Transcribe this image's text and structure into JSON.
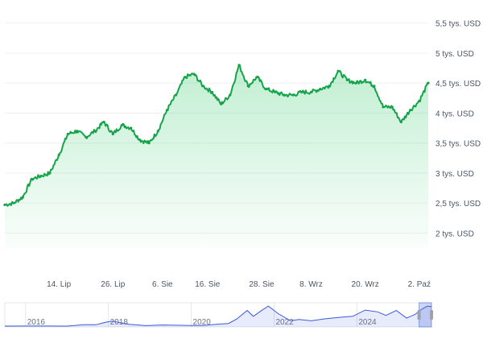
{
  "chart_data": [
    {
      "type": "area",
      "title": "",
      "xlabel": "",
      "ylabel": "",
      "ylim": [
        1750,
        5750
      ],
      "y_ticks": [
        {
          "value": 2000,
          "label": "2 tys. USD"
        },
        {
          "value": 2500,
          "label": "2,5 tys. USD"
        },
        {
          "value": 3000,
          "label": "3 tys. USD"
        },
        {
          "value": 3500,
          "label": "3,5 tys. USD"
        },
        {
          "value": 4000,
          "label": "4 tys. USD"
        },
        {
          "value": 4500,
          "label": "4,5 tys. USD"
        },
        {
          "value": 5000,
          "label": "5 tys. USD"
        },
        {
          "value": 5500,
          "label": "5,5 tys. USD"
        }
      ],
      "x_range": [
        "2025-07-02",
        "2025-10-04"
      ],
      "x_ticks": [
        {
          "date": "2025-07-14",
          "label": "14. Lip"
        },
        {
          "date": "2025-07-26",
          "label": "26. Lip"
        },
        {
          "date": "2025-08-06",
          "label": "6. Sie"
        },
        {
          "date": "2025-08-16",
          "label": "16. Sie"
        },
        {
          "date": "2025-08-28",
          "label": "28. Sie"
        },
        {
          "date": "2025-09-08",
          "label": "8. Wrz"
        },
        {
          "date": "2025-09-20",
          "label": "20. Wrz"
        },
        {
          "date": "2025-10-02",
          "label": "2. Paź"
        }
      ],
      "grid": true,
      "colors": {
        "line": "#16a34a",
        "fill": "#22c55e"
      },
      "series": [
        {
          "x": [
            "2025-07-02",
            "2025-07-04",
            "2025-07-06",
            "2025-07-08",
            "2025-07-10",
            "2025-07-12",
            "2025-07-14",
            "2025-07-16",
            "2025-07-18",
            "2025-07-20",
            "2025-07-22",
            "2025-07-24",
            "2025-07-26",
            "2025-07-28",
            "2025-07-30",
            "2025-08-01",
            "2025-08-03",
            "2025-08-05",
            "2025-08-07",
            "2025-08-09",
            "2025-08-11",
            "2025-08-13",
            "2025-08-15",
            "2025-08-17",
            "2025-08-19",
            "2025-08-21",
            "2025-08-23",
            "2025-08-25",
            "2025-08-27",
            "2025-08-29",
            "2025-08-31",
            "2025-09-02",
            "2025-09-04",
            "2025-09-06",
            "2025-09-08",
            "2025-09-10",
            "2025-09-12",
            "2025-09-14",
            "2025-09-16",
            "2025-09-18",
            "2025-09-20",
            "2025-09-22",
            "2025-09-24",
            "2025-09-26",
            "2025-09-28",
            "2025-09-30",
            "2025-10-02",
            "2025-10-04"
          ],
          "values": [
            2470,
            2500,
            2600,
            2900,
            2950,
            3000,
            3300,
            3650,
            3700,
            3600,
            3700,
            3850,
            3650,
            3800,
            3750,
            3550,
            3500,
            3700,
            4050,
            4300,
            4600,
            4650,
            4450,
            4350,
            4150,
            4300,
            4800,
            4450,
            4600,
            4400,
            4350,
            4300,
            4300,
            4350,
            4350,
            4400,
            4450,
            4700,
            4550,
            4500,
            4550,
            4450,
            4100,
            4100,
            3850,
            4050,
            4200,
            4500
          ]
        }
      ]
    },
    {
      "type": "area",
      "title": "",
      "x_labels": [
        "2016",
        "2018",
        "2020",
        "2022",
        "2024"
      ],
      "x_range": [
        2015.5,
        2025.8
      ],
      "selected_range": [
        2025.5,
        2025.8
      ],
      "colors": {
        "line": "#3b5bdb",
        "fill": "#3b5bdb"
      },
      "series": [
        {
          "x": [
            2015.5,
            2016.0,
            2016.5,
            2017.0,
            2017.4,
            2017.7,
            2017.95,
            2018.1,
            2018.5,
            2018.9,
            2019.3,
            2019.6,
            2020.0,
            2020.3,
            2020.6,
            2020.9,
            2021.1,
            2021.35,
            2021.5,
            2021.7,
            2021.86,
            2022.1,
            2022.4,
            2022.6,
            2022.9,
            2023.2,
            2023.5,
            2023.9,
            2024.2,
            2024.5,
            2024.7,
            2024.95,
            2025.2,
            2025.4,
            2025.55,
            2025.7,
            2025.8
          ],
          "values": [
            1,
            10,
            12,
            8,
            300,
            300,
            900,
            1100,
            400,
            110,
            250,
            200,
            130,
            150,
            400,
            600,
            1600,
            3500,
            2200,
            3500,
            4500,
            2800,
            1200,
            1500,
            1200,
            1600,
            1900,
            2200,
            3600,
            3200,
            2400,
            3500,
            1800,
            2600,
            3700,
            4500,
            4400
          ]
        }
      ]
    }
  ]
}
